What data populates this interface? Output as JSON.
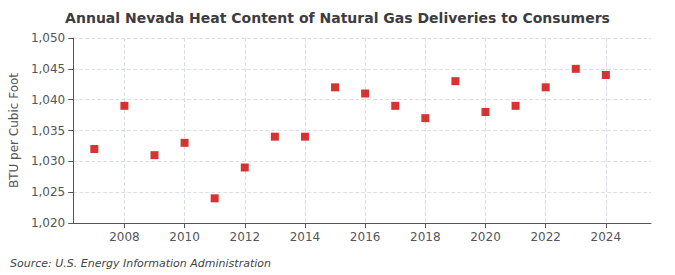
{
  "chart_data": {
    "type": "scatter",
    "title": "Annual Nevada Heat Content of Natural Gas Deliveries to Consumers",
    "ylabel": "BTU per Cubic Foot",
    "source": "Source: U.S. Energy Information Administration",
    "x": [
      2007,
      2008,
      2009,
      2010,
      2011,
      2012,
      2013,
      2014,
      2015,
      2016,
      2017,
      2018,
      2019,
      2020,
      2021,
      2022,
      2023,
      2024
    ],
    "values": [
      1032,
      1039,
      1031,
      1033,
      1024,
      1029,
      1034,
      1034,
      1042,
      1041,
      1039,
      1037,
      1043,
      1038,
      1039,
      1042,
      1045,
      1044
    ],
    "xlim": [
      2006.3,
      2025.5
    ],
    "xticks": [
      2008,
      2010,
      2012,
      2014,
      2016,
      2018,
      2020,
      2022,
      2024
    ],
    "ylim": [
      1020,
      1050
    ],
    "yticks": [
      {
        "value": 1020,
        "label": "1,020"
      },
      {
        "value": 1025,
        "label": "1,025"
      },
      {
        "value": 1030,
        "label": "1,030"
      },
      {
        "value": 1035,
        "label": "1,035"
      },
      {
        "value": 1040,
        "label": "1,040"
      },
      {
        "value": 1045,
        "label": "1,045"
      },
      {
        "value": 1050,
        "label": "1,050"
      }
    ],
    "color": "#cc0000",
    "marker": "square",
    "grid": true
  }
}
